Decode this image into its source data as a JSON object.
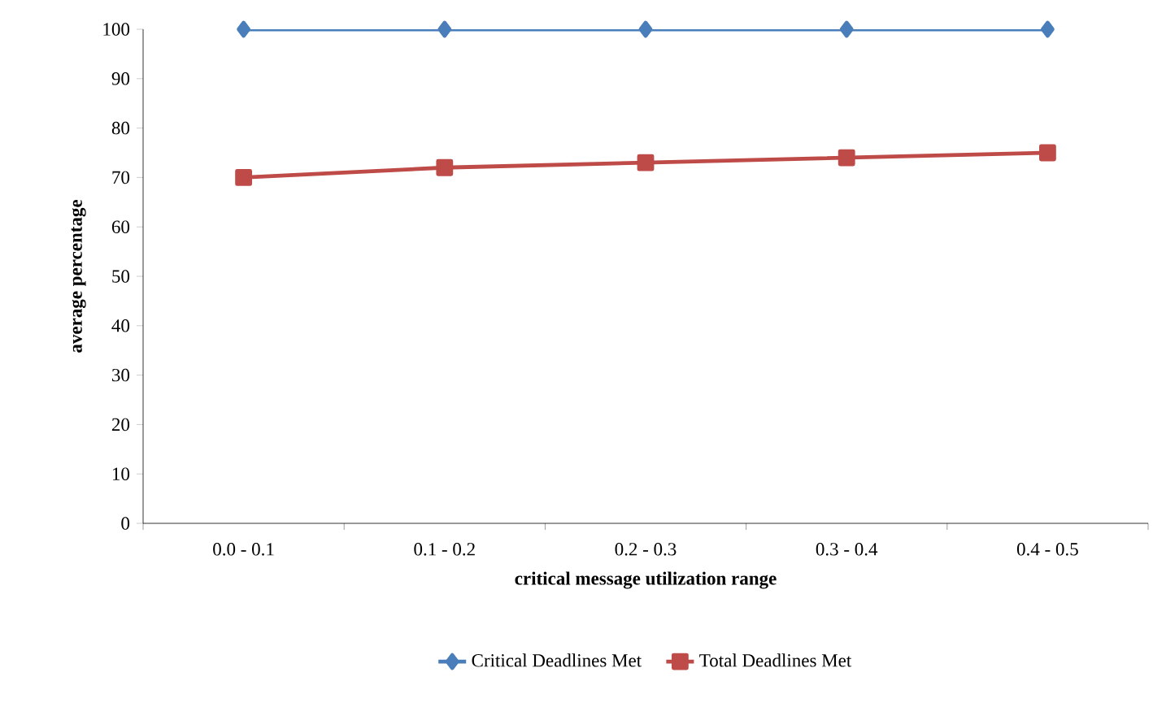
{
  "chart_data": {
    "type": "line",
    "xlabel": "critical message utilization range",
    "ylabel": "average percentage",
    "categories": [
      "0.0 - 0.1",
      "0.1 - 0.2",
      "0.2 - 0.3",
      "0.3 - 0.4",
      "0.4 - 0.5"
    ],
    "series": [
      {
        "name": "Critical Deadlines Met",
        "color": "#4a7ebb",
        "marker": "diamond",
        "values": [
          100,
          100,
          100,
          100,
          100
        ]
      },
      {
        "name": "Total Deadlines Met",
        "color": "#be4b48",
        "marker": "square",
        "values": [
          70,
          72,
          73,
          74,
          75
        ]
      }
    ],
    "ylim": [
      0,
      100
    ],
    "yticks": [
      0,
      10,
      20,
      30,
      40,
      50,
      60,
      70,
      80,
      90,
      100
    ],
    "grid": false,
    "legend": "bottom",
    "line_style": "solid"
  }
}
